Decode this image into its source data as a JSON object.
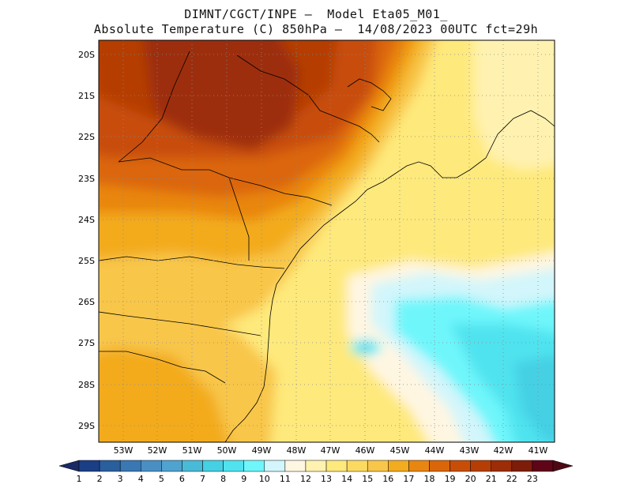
{
  "header": {
    "line1": "DIMNT/CGCT/INPE —  Model Eta05_M01_",
    "line2": "Absolute Temperature (C) 850hPa —  14/08/2023 00UTC fct=29h"
  },
  "map": {
    "variable": "Absolute Temperature (C) 850hPa",
    "lat_labels": [
      "20S",
      "21S",
      "22S",
      "23S",
      "24S",
      "25S",
      "26S",
      "27S",
      "28S",
      "29S"
    ],
    "lon_labels": [
      "53W",
      "52W",
      "51W",
      "50W",
      "49W",
      "48W",
      "47W",
      "46W",
      "45W",
      "44W",
      "43W",
      "42W",
      "41W"
    ],
    "lat_range": [
      -29.4,
      -19.9
    ],
    "lon_range": [
      -53.7,
      -40.6
    ]
  },
  "colorbar": {
    "labels": [
      "1",
      "2",
      "3",
      "4",
      "5",
      "6",
      "7",
      "8",
      "9",
      "10",
      "11",
      "12",
      "13",
      "14",
      "15",
      "16",
      "17",
      "18",
      "19",
      "20",
      "21",
      "22",
      "23"
    ],
    "colors": [
      "#1b3f86",
      "#2a5f9e",
      "#3a78b4",
      "#4a8fc4",
      "#4fa3cf",
      "#49bad8",
      "#45d0e4",
      "#50e3ef",
      "#6ef6fb",
      "#d2f6fb",
      "#fff6e2",
      "#fff2b0",
      "#fee97c",
      "#fcda62",
      "#f8c64a",
      "#f3ab1f",
      "#e98611",
      "#db6609",
      "#c84e08",
      "#b63e05",
      "#9d2d07",
      "#7e1c0a",
      "#600418"
    ],
    "under_color": "#192b66",
    "over_color": "#4c0914"
  }
}
